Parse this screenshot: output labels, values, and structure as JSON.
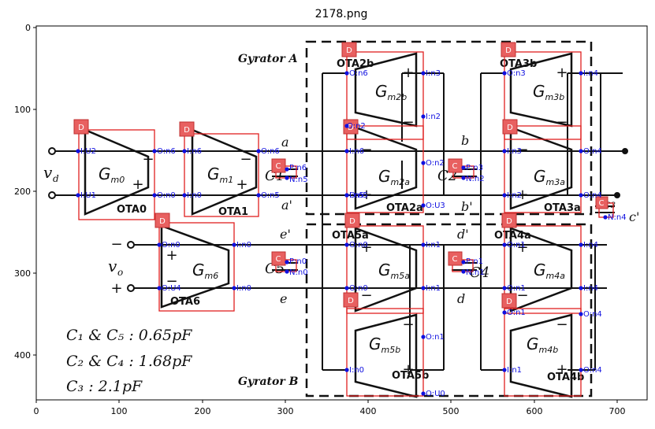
{
  "figure": {
    "title": "2178.png",
    "x_ticks": [
      "0",
      "100",
      "200",
      "300",
      "400",
      "500",
      "600",
      "700"
    ],
    "y_ticks": [
      "0",
      "100",
      "200",
      "300",
      "400"
    ]
  },
  "labels": {
    "gyrator_a": "Gyrator A",
    "gyrator_b": "Gyrator B",
    "vd": "v",
    "vd_sub": "d",
    "vo": "v",
    "vo_sub": "o",
    "node_a": "a",
    "node_a_prime": "a'",
    "node_b": "b",
    "node_b_prime": "b'",
    "node_c_prime": "c'",
    "node_d": "d",
    "node_d_prime": "d'",
    "node_e": "e",
    "node_e_prime": "e'",
    "plus": "+",
    "minus": "−",
    "cap_note_1": "C₁ & C₅ : 0.65pF",
    "cap_note_2": "C₂ & C₄ : 1.68pF",
    "cap_note_3": "C₃ : 2.1pF"
  },
  "otas": [
    {
      "name": "OTA0",
      "gm": "G",
      "gm_sub": "m0"
    },
    {
      "name": "OTA1",
      "gm": "G",
      "gm_sub": "m1"
    },
    {
      "name": "OTA6",
      "gm": "G",
      "gm_sub": "m6"
    },
    {
      "name": "OTA2b",
      "gm": "G",
      "gm_sub": "m2b"
    },
    {
      "name": "OTA2a",
      "gm": "G",
      "gm_sub": "m2a"
    },
    {
      "name": "OTA5a",
      "gm": "G",
      "gm_sub": "m5a"
    },
    {
      "name": "OTA5b",
      "gm": "G",
      "gm_sub": "m5b"
    },
    {
      "name": "OTA3b",
      "gm": "G",
      "gm_sub": "m3b"
    },
    {
      "name": "OTA3a",
      "gm": "G",
      "gm_sub": "m3a"
    },
    {
      "name": "OTA4a",
      "gm": "G",
      "gm_sub": "m4a"
    },
    {
      "name": "OTA4b",
      "gm": "G",
      "gm_sub": "m4b"
    }
  ],
  "capacitors": [
    "C1",
    "C2",
    "C3",
    "C4",
    "C5"
  ],
  "annotations": {
    "badges": [
      "D",
      "D",
      "D",
      "D",
      "D",
      "D",
      "D",
      "D",
      "D",
      "D",
      "D",
      "C",
      "C",
      "C",
      "C",
      "C"
    ],
    "pins": [
      "I:U2",
      "I:U1",
      "O:n6",
      "I:n6",
      "O:n0",
      "I:n0",
      "O:n6",
      "O:n5",
      "P:n6",
      "N:n5",
      "O:n5",
      "I:n3",
      "O:n6",
      "I:n6",
      "O:n2",
      "I:n5",
      "O:U3",
      "I:n2",
      "P:n3",
      "N:n2",
      "O:n2",
      "I:n4",
      "O:n3",
      "I:n3",
      "O:n4",
      "I:n2",
      "O:n4",
      "N:n4",
      "O:n0",
      "I:n0",
      "O:U4",
      "I:n0",
      "P:n0",
      "N:n0",
      "O:n0",
      "I:n1",
      "O:n0",
      "I:n1",
      "O:n1",
      "I:n0",
      "O:U0",
      "P:n1",
      "N:n1",
      "O:n1",
      "I:n4",
      "O:n1",
      "I:n4",
      "O:n1",
      "O:n4",
      "I:n1",
      "O:n4"
    ]
  }
}
